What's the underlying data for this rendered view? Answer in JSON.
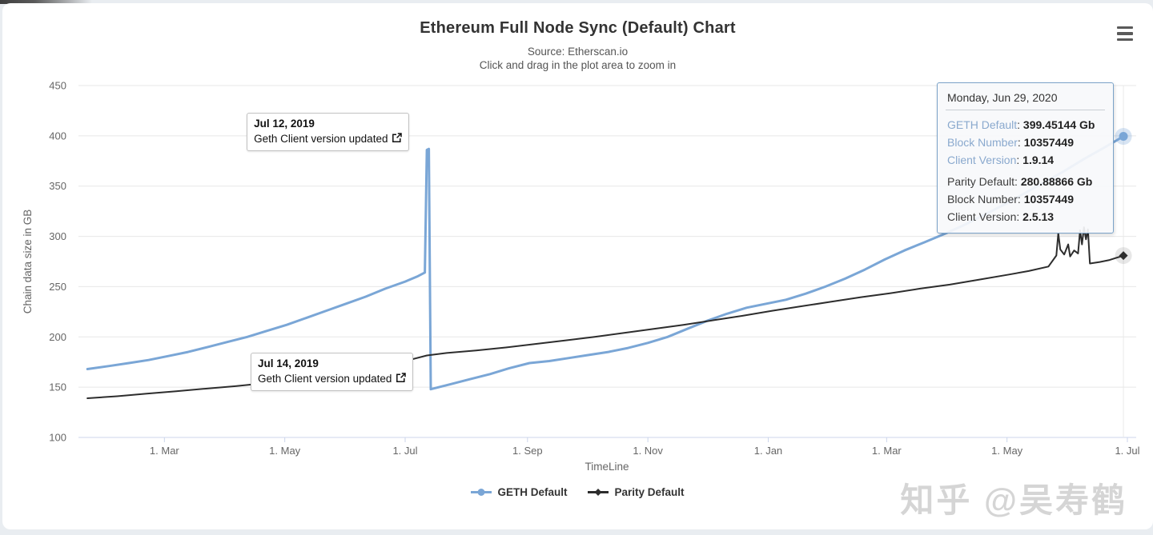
{
  "page": {
    "watermark": "知乎 @吴寿鹤"
  },
  "header": {
    "menu_icon": "hamburger-menu-icon"
  },
  "chart_data": {
    "type": "line",
    "title": "Ethereum Full Node Sync (Default) Chart",
    "subtitle_source": "Source: Etherscan.io",
    "subtitle_hint": "Click and drag in the plot area to zoom in",
    "xlabel": "TimeLine",
    "ylabel": "Chain data size in GB",
    "ylim": [
      100,
      450
    ],
    "yticks": [
      100,
      150,
      200,
      250,
      300,
      350,
      400,
      450
    ],
    "xticks": [
      {
        "label": "1. Mar",
        "date": "2019-03-01"
      },
      {
        "label": "1. May",
        "date": "2019-05-01"
      },
      {
        "label": "1. Jul",
        "date": "2019-07-01"
      },
      {
        "label": "1. Sep",
        "date": "2019-09-01"
      },
      {
        "label": "1. Nov",
        "date": "2019-11-01"
      },
      {
        "label": "1. Jan",
        "date": "2020-01-01"
      },
      {
        "label": "1. Mar",
        "date": "2020-03-01"
      },
      {
        "label": "1. May",
        "date": "2020-05-01"
      },
      {
        "label": "1. Jul",
        "date": "2020-07-01"
      }
    ],
    "grid": "horizontal",
    "legend_position": "bottom-center",
    "hover_date": "2020-06-29",
    "series": [
      {
        "name": "GETH Default",
        "color": "#7aa6d6",
        "marker": "circle",
        "line_width": 3,
        "points": [
          [
            "2019-01-21",
            168
          ],
          [
            "2019-02-01",
            171
          ],
          [
            "2019-02-11",
            174
          ],
          [
            "2019-02-21",
            177
          ],
          [
            "2019-03-03",
            181
          ],
          [
            "2019-03-13",
            185
          ],
          [
            "2019-03-23",
            190
          ],
          [
            "2019-04-02",
            195
          ],
          [
            "2019-04-12",
            200
          ],
          [
            "2019-04-22",
            206
          ],
          [
            "2019-05-02",
            212
          ],
          [
            "2019-05-12",
            219
          ],
          [
            "2019-05-22",
            226
          ],
          [
            "2019-06-01",
            233
          ],
          [
            "2019-06-11",
            240
          ],
          [
            "2019-06-21",
            248
          ],
          [
            "2019-07-01",
            255
          ],
          [
            "2019-07-07",
            260
          ],
          [
            "2019-07-11",
            264
          ],
          [
            "2019-07-12",
            386
          ],
          [
            "2019-07-13",
            387
          ],
          [
            "2019-07-14",
            148
          ],
          [
            "2019-07-24",
            153
          ],
          [
            "2019-08-03",
            158
          ],
          [
            "2019-08-13",
            163
          ],
          [
            "2019-08-23",
            169
          ],
          [
            "2019-09-02",
            174
          ],
          [
            "2019-09-12",
            176
          ],
          [
            "2019-09-22",
            179
          ],
          [
            "2019-10-02",
            182
          ],
          [
            "2019-10-12",
            185
          ],
          [
            "2019-10-22",
            189
          ],
          [
            "2019-11-01",
            194
          ],
          [
            "2019-11-11",
            200
          ],
          [
            "2019-11-21",
            208
          ],
          [
            "2019-12-01",
            216
          ],
          [
            "2019-12-11",
            223
          ],
          [
            "2019-12-21",
            229
          ],
          [
            "2019-12-31",
            233
          ],
          [
            "2020-01-10",
            237
          ],
          [
            "2020-01-20",
            243
          ],
          [
            "2020-01-30",
            250
          ],
          [
            "2020-02-09",
            258
          ],
          [
            "2020-02-19",
            267
          ],
          [
            "2020-02-29",
            277
          ],
          [
            "2020-03-10",
            286
          ],
          [
            "2020-03-20",
            294
          ],
          [
            "2020-03-31",
            303
          ],
          [
            "2020-04-10",
            312
          ],
          [
            "2020-04-20",
            322
          ],
          [
            "2020-04-30",
            332
          ],
          [
            "2020-05-10",
            343
          ],
          [
            "2020-05-20",
            354
          ],
          [
            "2020-05-30",
            365
          ],
          [
            "2020-06-09",
            377
          ],
          [
            "2020-06-19",
            388
          ],
          [
            "2020-06-29",
            399.45144
          ]
        ]
      },
      {
        "name": "Parity Default",
        "color": "#2d2d2d",
        "marker": "diamond",
        "line_width": 2,
        "points": [
          [
            "2019-01-21",
            139
          ],
          [
            "2019-02-05",
            141
          ],
          [
            "2019-02-20",
            143.5
          ],
          [
            "2019-03-07",
            146
          ],
          [
            "2019-03-22",
            148.5
          ],
          [
            "2019-04-06",
            151
          ],
          [
            "2019-04-21",
            154
          ],
          [
            "2019-05-06",
            157.5
          ],
          [
            "2019-05-21",
            161.5
          ],
          [
            "2019-06-01",
            164.5
          ],
          [
            "2019-06-06",
            168.5
          ],
          [
            "2019-06-10",
            166.5
          ],
          [
            "2019-06-20",
            171
          ],
          [
            "2019-07-01",
            176
          ],
          [
            "2019-07-12",
            181.5
          ],
          [
            "2019-07-22",
            184
          ],
          [
            "2019-08-06",
            186.5
          ],
          [
            "2019-08-21",
            189.5
          ],
          [
            "2019-09-05",
            193
          ],
          [
            "2019-09-20",
            196.5
          ],
          [
            "2019-10-05",
            200
          ],
          [
            "2019-10-20",
            204
          ],
          [
            "2019-11-04",
            208
          ],
          [
            "2019-11-19",
            212
          ],
          [
            "2019-12-04",
            216.5
          ],
          [
            "2019-12-19",
            221
          ],
          [
            "2020-01-03",
            226
          ],
          [
            "2020-01-18",
            230.5
          ],
          [
            "2020-02-02",
            235
          ],
          [
            "2020-02-17",
            239.5
          ],
          [
            "2020-03-03",
            243.5
          ],
          [
            "2020-03-18",
            248
          ],
          [
            "2020-04-02",
            252
          ],
          [
            "2020-04-17",
            257
          ],
          [
            "2020-05-02",
            262
          ],
          [
            "2020-05-12",
            265.5
          ],
          [
            "2020-05-22",
            270
          ],
          [
            "2020-05-26",
            281
          ],
          [
            "2020-05-27",
            303
          ],
          [
            "2020-05-28",
            287
          ],
          [
            "2020-05-30",
            282
          ],
          [
            "2020-06-01",
            292
          ],
          [
            "2020-06-02",
            280
          ],
          [
            "2020-06-04",
            286
          ],
          [
            "2020-06-06",
            283
          ],
          [
            "2020-06-07",
            306
          ],
          [
            "2020-06-08",
            292
          ],
          [
            "2020-06-09",
            309
          ],
          [
            "2020-06-10",
            297
          ],
          [
            "2020-06-11",
            307
          ],
          [
            "2020-06-12",
            273
          ],
          [
            "2020-06-17",
            274.5
          ],
          [
            "2020-06-22",
            276.5
          ],
          [
            "2020-06-29",
            280.88866
          ]
        ]
      }
    ],
    "annotations": [
      {
        "date_label": "Jul 12, 2019",
        "text": "Geth Client version updated",
        "icon": "external-link-icon",
        "anchor_date": "2019-07-12",
        "anchor_value": 386
      },
      {
        "date_label": "Jul 14, 2019",
        "text": "Geth Client version updated",
        "icon": "external-link-icon",
        "anchor_date": "2019-07-14",
        "anchor_value": 148
      }
    ],
    "tooltip": {
      "date": "Monday, Jun 29, 2020",
      "rows": [
        {
          "series": "geth",
          "label": "GETH Default",
          "value": "399.45144 Gb",
          "color": "#8aa9ce"
        },
        {
          "series": "geth",
          "label": "Block Number",
          "value": "10357449",
          "color": "#8aa9ce"
        },
        {
          "series": "geth",
          "label": "Client Version",
          "value": "1.9.14",
          "color": "#8aa9ce"
        },
        {
          "series": "parity",
          "label": "Parity Default",
          "value": "280.88866 Gb",
          "color": "#3c3c3c"
        },
        {
          "series": "parity",
          "label": "Block Number",
          "value": "10357449",
          "color": "#3c3c3c"
        },
        {
          "series": "parity",
          "label": "Client Version",
          "value": "2.5.13",
          "color": "#3c3c3c"
        }
      ]
    },
    "legend": [
      "GETH Default",
      "Parity Default"
    ]
  }
}
